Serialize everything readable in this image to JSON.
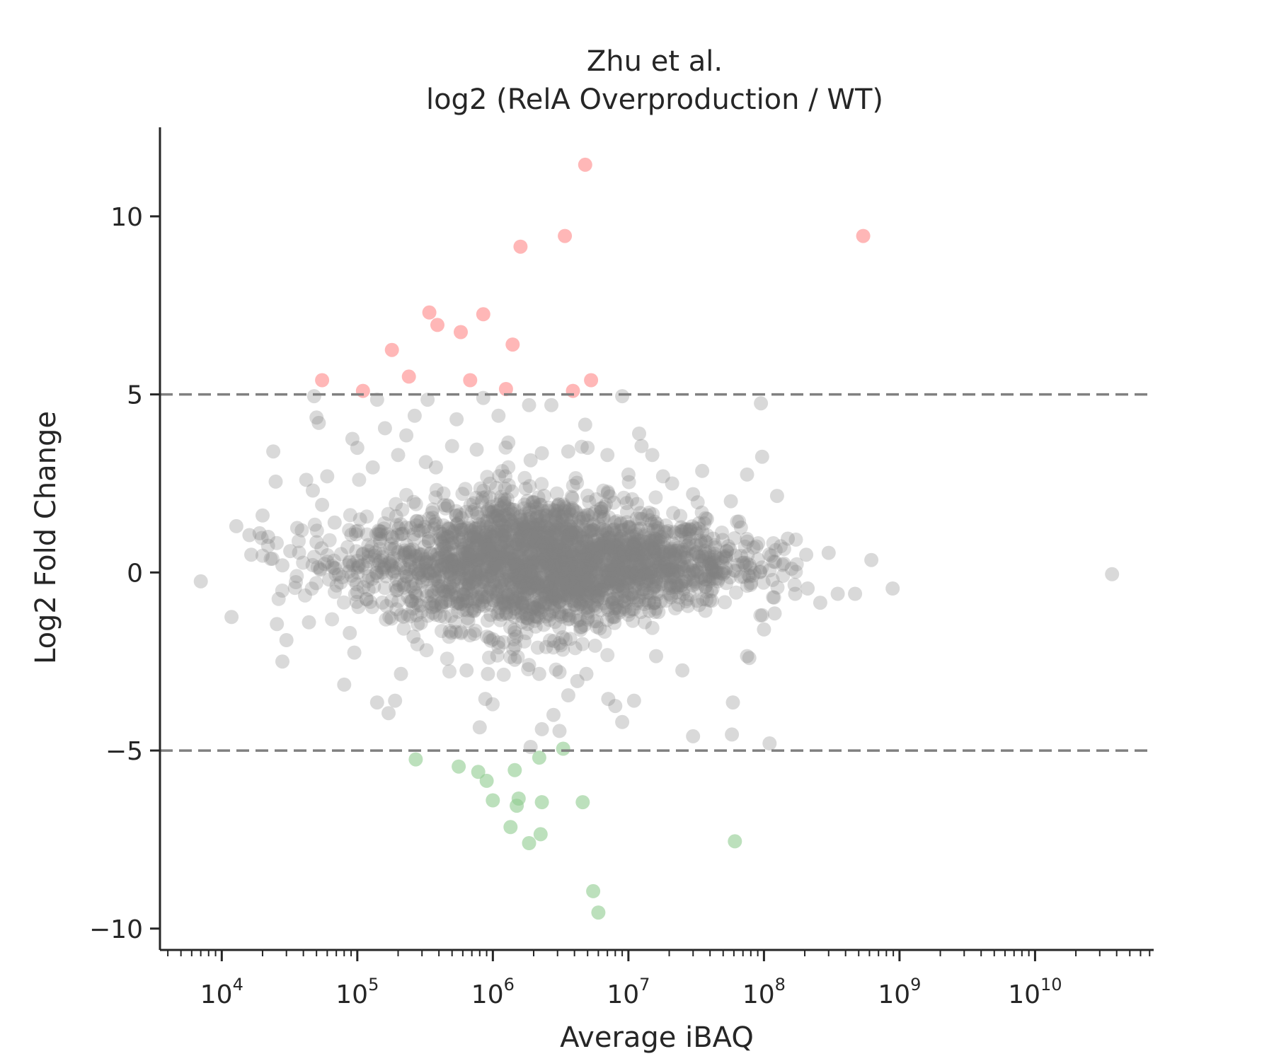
{
  "chart_data": {
    "type": "scatter",
    "title": "Zhu et al.",
    "subtitle": "log2 (RelA Overproduction / WT)",
    "xlabel": "Average iBAQ",
    "ylabel": "Log2 Fold Change",
    "x_scale": "log10",
    "xlim": [
      3500,
      75000000000
    ],
    "ylim": [
      -10.6,
      12.5
    ],
    "x_ticks": [
      {
        "base": "10",
        "exp": "4",
        "value": 10000
      },
      {
        "base": "10",
        "exp": "5",
        "value": 100000
      },
      {
        "base": "10",
        "exp": "6",
        "value": 1000000
      },
      {
        "base": "10",
        "exp": "7",
        "value": 10000000
      },
      {
        "base": "10",
        "exp": "8",
        "value": 100000000
      },
      {
        "base": "10",
        "exp": "9",
        "value": 1000000000
      },
      {
        "base": "10",
        "exp": "10",
        "value": 10000000000
      }
    ],
    "y_ticks": [
      {
        "label": "10",
        "value": 10
      },
      {
        "label": "5",
        "value": 5
      },
      {
        "label": "0",
        "value": 0
      },
      {
        "label": "−5",
        "value": -5
      },
      {
        "label": "−10",
        "value": -10
      }
    ],
    "threshold_lines": [
      5,
      -5
    ],
    "grid": false,
    "colors": {
      "up": "#ff9999",
      "down": "#8fcc8f",
      "neutral": "#808080",
      "threshold": "#808080",
      "axis": "#262626"
    },
    "series": [
      {
        "name": "up",
        "points": [
          [
            4800000,
            11.45
          ],
          [
            3400000,
            9.45
          ],
          [
            1600000,
            9.15
          ],
          [
            540000000,
            9.45
          ],
          [
            340000,
            7.3
          ],
          [
            850000,
            7.25
          ],
          [
            390000,
            6.95
          ],
          [
            580000,
            6.75
          ],
          [
            1400000,
            6.4
          ],
          [
            180000,
            6.25
          ],
          [
            240000,
            5.5
          ],
          [
            55000,
            5.4
          ],
          [
            680000,
            5.4
          ],
          [
            5300000,
            5.4
          ],
          [
            110000,
            5.1
          ],
          [
            1250000,
            5.15
          ],
          [
            3900000,
            5.1
          ]
        ]
      },
      {
        "name": "down",
        "points": [
          [
            270000,
            -5.25
          ],
          [
            560000,
            -5.45
          ],
          [
            780000,
            -5.6
          ],
          [
            1450000,
            -5.55
          ],
          [
            2200000,
            -5.2
          ],
          [
            3300000,
            -4.95
          ],
          [
            900000,
            -5.85
          ],
          [
            1000000,
            -6.4
          ],
          [
            1550000,
            -6.35
          ],
          [
            1500000,
            -6.55
          ],
          [
            2300000,
            -6.45
          ],
          [
            4600000,
            -6.45
          ],
          [
            1350000,
            -7.15
          ],
          [
            2250000,
            -7.35
          ],
          [
            1850000,
            -7.6
          ],
          [
            61000000,
            -7.55
          ],
          [
            5500000,
            -8.95
          ],
          [
            6000000,
            -9.55
          ]
        ]
      },
      {
        "name": "neutral",
        "points": [
          [
            7000,
            -0.25
          ],
          [
            11800,
            -1.25
          ],
          [
            12800,
            1.3
          ],
          [
            16500,
            0.5
          ],
          [
            20000,
            1.6
          ],
          [
            24000,
            3.4
          ],
          [
            25000,
            2.55
          ],
          [
            25500,
            -1.45
          ],
          [
            28000,
            -2.5
          ],
          [
            30000,
            -1.9
          ],
          [
            42000,
            2.6
          ],
          [
            47000,
            2.3
          ],
          [
            48000,
            4.95
          ],
          [
            50000,
            4.35
          ],
          [
            52000,
            4.2
          ],
          [
            50000,
            0.85
          ],
          [
            44000,
            -1.4
          ],
          [
            80000,
            -3.15
          ],
          [
            92000,
            3.75
          ],
          [
            140000,
            -3.65
          ],
          [
            170000,
            -3.95
          ],
          [
            190000,
            -3.6
          ],
          [
            55000,
            1.9
          ],
          [
            62000,
            -0.2
          ],
          [
            68000,
            1.4
          ],
          [
            140000,
            4.85
          ],
          [
            160000,
            4.05
          ],
          [
            230000,
            3.85
          ],
          [
            265000,
            4.4
          ],
          [
            330000,
            4.85
          ],
          [
            540000,
            4.3
          ],
          [
            850000,
            4.9
          ],
          [
            1100000,
            4.4
          ],
          [
            1850000,
            4.7
          ],
          [
            2700000,
            4.7
          ],
          [
            2300000,
            3.35
          ],
          [
            4800000,
            4.15
          ],
          [
            9000000,
            4.95
          ],
          [
            12000000,
            3.9
          ],
          [
            12500000,
            3.55
          ],
          [
            21000000,
            2.5
          ],
          [
            35000000,
            2.85
          ],
          [
            57000000,
            2.0
          ],
          [
            75000000,
            2.75
          ],
          [
            95000000,
            4.75
          ],
          [
            97000000,
            3.25
          ],
          [
            125000000,
            2.15
          ],
          [
            150000000,
            0.95
          ],
          [
            205000000,
            0.5
          ],
          [
            300000000,
            0.55
          ],
          [
            620000000,
            0.35
          ],
          [
            890000000,
            -0.45
          ],
          [
            470000000,
            -0.6
          ],
          [
            350000000,
            -0.6
          ],
          [
            260000000,
            -0.85
          ],
          [
            37000000000,
            -0.05
          ],
          [
            110000000,
            -4.8
          ],
          [
            59000000,
            -3.65
          ],
          [
            58000000,
            -4.55
          ],
          [
            30000000,
            -4.6
          ],
          [
            25000000,
            -2.75
          ],
          [
            16000000,
            -2.35
          ],
          [
            11000000,
            -3.6
          ],
          [
            9000000,
            -4.2
          ],
          [
            8000000,
            -3.75
          ],
          [
            7100000,
            -3.55
          ],
          [
            4900000,
            -2.85
          ],
          [
            4200000,
            -3.05
          ],
          [
            3600000,
            -3.45
          ],
          [
            3100000,
            -4.45
          ],
          [
            2800000,
            -4.0
          ],
          [
            2300000,
            -4.4
          ],
          [
            1900000,
            -4.9
          ],
          [
            800000,
            -4.35
          ],
          [
            880000,
            -3.55
          ],
          [
            920000,
            -2.85
          ],
          [
            1450000,
            -2.45
          ],
          [
            2200000,
            -2.85
          ],
          [
            3100000,
            -2.8
          ],
          [
            640000,
            -2.75
          ],
          [
            95000,
            -2.25
          ],
          [
            88000,
            -1.7
          ],
          [
            210000,
            -2.85
          ],
          [
            260000,
            -1.8
          ],
          [
            75000000,
            -2.35
          ],
          [
            78000000,
            -2.4
          ],
          [
            100000000,
            -1.6
          ],
          [
            120000000,
            -1.15
          ],
          [
            170000000,
            -0.6
          ],
          [
            210000000,
            -0.45
          ],
          [
            140000000,
            0.25
          ],
          [
            38000000,
            1.5
          ],
          [
            30000000,
            2.2
          ],
          [
            18000000,
            2.7
          ],
          [
            15000000,
            3.3
          ],
          [
            10000000,
            2.75
          ],
          [
            7000000,
            3.3
          ],
          [
            5000000,
            3.5
          ],
          [
            3600000,
            3.4
          ],
          [
            1900000,
            3.15
          ],
          [
            1300000,
            3.65
          ],
          [
            760000,
            3.45
          ],
          [
            500000,
            3.55
          ],
          [
            380000,
            2.95
          ],
          [
            320000,
            3.1
          ],
          [
            200000,
            3.3
          ],
          [
            130000,
            2.95
          ],
          [
            100000,
            3.5
          ],
          [
            60000,
            2.7
          ],
          [
            36000,
            1.25
          ],
          [
            32000,
            0.6
          ],
          [
            28000,
            0.2
          ],
          [
            22000,
            1.0
          ],
          [
            19000,
            1.1
          ],
          [
            16000,
            1.05
          ]
        ]
      }
    ]
  }
}
